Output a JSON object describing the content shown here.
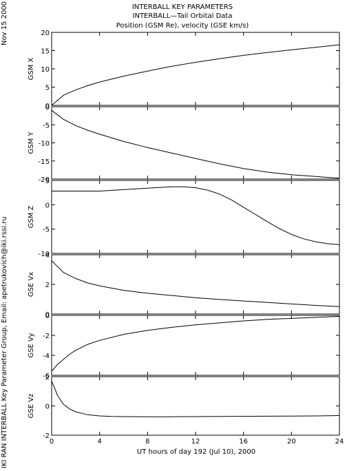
{
  "header": {
    "title_line1": "INTERBALL KEY PARAMETERS",
    "title_line2": "INTERBALL—Tail Orbital Data",
    "title_line3": "Position (GSM Re), velocity (GSE km/s)",
    "date": "Nov 15 2000",
    "credit": "IKI RAN INTERBALL Key Parameter Group, Email: apetrukovich@iki.rssi.ru"
  },
  "xaxis": {
    "label": "UT hours of day 192 (Jul 10), 2000",
    "ticks": [
      0,
      4,
      8,
      12,
      16,
      20,
      24
    ],
    "range": [
      0,
      24
    ]
  },
  "chart_data": [
    {
      "type": "line",
      "ylabel": "GSM X",
      "ylim": [
        0,
        20
      ],
      "yticks": [
        0,
        5,
        10,
        15,
        20
      ],
      "x": [
        0,
        1,
        2,
        3,
        4,
        6,
        8,
        10,
        12,
        14,
        16,
        18,
        20,
        22,
        24
      ],
      "values": [
        0.0,
        2.8,
        4.2,
        5.4,
        6.4,
        8.0,
        9.4,
        10.7,
        11.8,
        12.8,
        13.7,
        14.5,
        15.2,
        15.9,
        16.6
      ]
    },
    {
      "type": "line",
      "ylabel": "GSM Y",
      "ylim": [
        -20,
        0
      ],
      "yticks": [
        0,
        -5,
        -10,
        -15,
        -20
      ],
      "x": [
        0,
        1,
        2,
        3,
        4,
        6,
        8,
        10,
        12,
        14,
        16,
        18,
        20,
        22,
        24
      ],
      "values": [
        -1.0,
        -3.5,
        -5.2,
        -6.5,
        -7.6,
        -9.6,
        -11.3,
        -12.8,
        -14.3,
        -15.8,
        -17.1,
        -18.1,
        -18.8,
        -19.3,
        -19.8
      ]
    },
    {
      "type": "line",
      "ylabel": "GSM Z",
      "ylim": [
        -10,
        5
      ],
      "yticks": [
        5,
        0,
        -5,
        -10
      ],
      "x": [
        0,
        2,
        4,
        6,
        8,
        10,
        11,
        12,
        13,
        14,
        15,
        16,
        17,
        18,
        19,
        20,
        21,
        22,
        23,
        24
      ],
      "values": [
        2.8,
        2.8,
        2.8,
        3.1,
        3.4,
        3.7,
        3.7,
        3.5,
        3.0,
        2.2,
        1.0,
        -0.5,
        -2.0,
        -3.5,
        -4.9,
        -6.1,
        -7.0,
        -7.6,
        -8.0,
        -8.2
      ]
    },
    {
      "type": "line",
      "ylabel": "GSE Vx",
      "ylim": [
        0,
        4
      ],
      "yticks": [
        0,
        2,
        4
      ],
      "x": [
        0,
        0.5,
        1,
        1.5,
        2,
        3,
        4,
        6,
        8,
        10,
        12,
        14,
        16,
        18,
        20,
        22,
        24
      ],
      "values": [
        3.6,
        3.2,
        2.8,
        2.6,
        2.4,
        2.1,
        1.9,
        1.6,
        1.4,
        1.25,
        1.1,
        0.98,
        0.88,
        0.78,
        0.68,
        0.58,
        0.5
      ]
    },
    {
      "type": "line",
      "ylabel": "GSE Vy",
      "ylim": [
        -6,
        0
      ],
      "yticks": [
        0,
        -2,
        -4,
        -6
      ],
      "x": [
        0,
        0.5,
        1,
        1.5,
        2,
        3,
        4,
        6,
        8,
        10,
        12,
        14,
        16,
        18,
        20,
        22,
        24
      ],
      "values": [
        -5.6,
        -4.9,
        -4.4,
        -3.9,
        -3.5,
        -2.9,
        -2.5,
        -1.9,
        -1.5,
        -1.2,
        -0.95,
        -0.75,
        -0.55,
        -0.4,
        -0.3,
        -0.2,
        -0.1
      ]
    },
    {
      "type": "line",
      "ylabel": "GSE Vz",
      "ylim": [
        -2,
        2
      ],
      "yticks": [
        2,
        0,
        -2
      ],
      "x": [
        0,
        0.25,
        0.5,
        1,
        1.5,
        2,
        3,
        4,
        5,
        6,
        8,
        10,
        12,
        14,
        16,
        18,
        20,
        22,
        24
      ],
      "values": [
        1.7,
        1.2,
        0.7,
        0.1,
        -0.2,
        -0.4,
        -0.6,
        -0.68,
        -0.72,
        -0.73,
        -0.74,
        -0.74,
        -0.73,
        -0.72,
        -0.71,
        -0.7,
        -0.69,
        -0.68,
        -0.66
      ]
    }
  ]
}
